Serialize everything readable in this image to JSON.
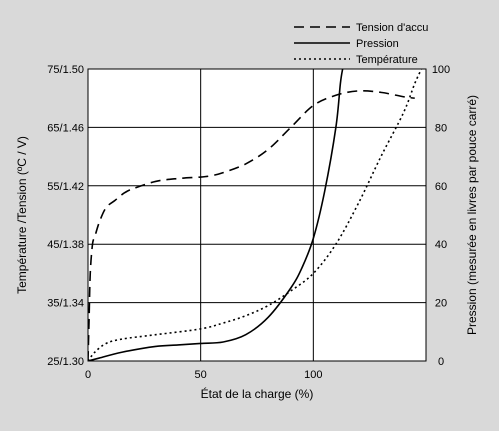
{
  "chart_data": {
    "type": "line",
    "title": "",
    "xlabel": "État de la charge (%)",
    "ylabel_left": "Température /Tension (ºC / V)",
    "ylabel_right": "Pression (mesurée en livres par pouce carré)",
    "x_ticks": [
      "0",
      "50",
      "100"
    ],
    "x_tick_values": [
      0,
      50,
      100
    ],
    "xlim": [
      0,
      150
    ],
    "y_left_ticks": [
      "25/1.30",
      "35/1.34",
      "45/1.38",
      "55/1.42",
      "65/1.46",
      "75/1.50"
    ],
    "y_right_ticks": [
      "0",
      "20",
      "40",
      "60",
      "80",
      "100"
    ],
    "y_right_tick_values": [
      0,
      20,
      40,
      60,
      80,
      100
    ],
    "ylim_right": [
      0,
      100
    ],
    "grid": true,
    "legend_position": "top-right",
    "colors": {
      "background": "#d9d9d9",
      "plot": "#ffffff",
      "line": "#000000"
    },
    "series": [
      {
        "name": "Tension d'accu",
        "style": "dashed",
        "axis": "left",
        "points": [
          [
            0,
            1.3
          ],
          [
            0.5,
            1.33
          ],
          [
            1,
            1.36
          ],
          [
            2,
            1.38
          ],
          [
            3,
            1.385
          ],
          [
            5,
            1.395
          ],
          [
            8,
            1.405
          ],
          [
            12,
            1.41
          ],
          [
            16,
            1.415
          ],
          [
            20,
            1.418
          ],
          [
            30,
            1.423
          ],
          [
            40,
            1.425
          ],
          [
            50,
            1.426
          ],
          [
            55,
            1.427
          ],
          [
            60,
            1.429
          ],
          [
            70,
            1.435
          ],
          [
            80,
            1.445
          ],
          [
            90,
            1.46
          ],
          [
            100,
            1.475
          ],
          [
            110,
            1.482
          ],
          [
            120,
            1.485
          ],
          [
            130,
            1.484
          ],
          [
            140,
            1.481
          ],
          [
            145,
            1.48
          ]
        ]
      },
      {
        "name": "Pression",
        "style": "solid",
        "axis": "right",
        "points": [
          [
            0,
            0
          ],
          [
            5,
            1
          ],
          [
            15,
            3
          ],
          [
            30,
            5
          ],
          [
            40,
            5.5
          ],
          [
            50,
            6
          ],
          [
            60,
            6.5
          ],
          [
            70,
            9
          ],
          [
            80,
            15
          ],
          [
            90,
            25
          ],
          [
            95,
            32
          ],
          [
            100,
            42
          ],
          [
            105,
            58
          ],
          [
            110,
            80
          ],
          [
            112,
            95
          ],
          [
            113,
            100
          ]
        ]
      },
      {
        "name": "Température",
        "style": "dotted",
        "axis": "right",
        "points": [
          [
            0,
            0
          ],
          [
            3,
            3
          ],
          [
            8,
            6
          ],
          [
            15,
            7.5
          ],
          [
            30,
            9
          ],
          [
            50,
            11
          ],
          [
            60,
            13
          ],
          [
            70,
            15.5
          ],
          [
            80,
            19
          ],
          [
            90,
            24
          ],
          [
            100,
            30
          ],
          [
            110,
            40
          ],
          [
            120,
            54
          ],
          [
            130,
            70
          ],
          [
            140,
            85
          ],
          [
            145,
            95
          ],
          [
            148,
            100
          ]
        ]
      }
    ]
  }
}
